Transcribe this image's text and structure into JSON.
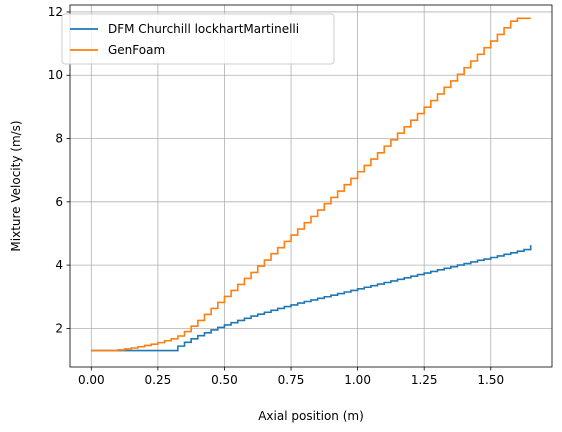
{
  "chart_data": {
    "type": "line",
    "style": "step",
    "title": "",
    "xlabel": "Axial position (m)",
    "ylabel": "Mixture Velocity (m/s)",
    "xlim": [
      -0.08,
      1.73
    ],
    "ylim": [
      0.78,
      12.22
    ],
    "xticks": [
      0.0,
      0.25,
      0.5,
      0.75,
      1.0,
      1.25,
      1.5
    ],
    "xtick_labels": [
      "0.00",
      "0.25",
      "0.50",
      "0.75",
      "1.00",
      "1.25",
      "1.50"
    ],
    "yticks": [
      2,
      4,
      6,
      8,
      10,
      12
    ],
    "ytick_labels": [
      "2",
      "4",
      "6",
      "8",
      "10",
      "12"
    ],
    "grid": true,
    "legend_position": "upper-left",
    "series": [
      {
        "name": "DFM Churchill lockhartMartinelli",
        "color": "#1f77b4",
        "x": [
          0.0,
          0.325,
          0.35,
          0.375,
          0.4,
          0.425,
          0.45,
          0.475,
          0.5,
          0.525,
          0.55,
          0.575,
          0.6,
          0.625,
          0.65,
          0.675,
          0.7,
          0.725,
          0.75,
          0.775,
          0.8,
          0.825,
          0.85,
          0.875,
          0.9,
          0.925,
          0.95,
          0.975,
          1.0,
          1.025,
          1.05,
          1.075,
          1.1,
          1.125,
          1.15,
          1.175,
          1.2,
          1.225,
          1.25,
          1.275,
          1.3,
          1.325,
          1.35,
          1.375,
          1.4,
          1.425,
          1.45,
          1.475,
          1.5,
          1.525,
          1.55,
          1.575,
          1.6,
          1.625,
          1.65
        ],
        "y": [
          1.3,
          1.44,
          1.56,
          1.67,
          1.77,
          1.86,
          1.95,
          2.03,
          2.11,
          2.18,
          2.25,
          2.32,
          2.39,
          2.45,
          2.51,
          2.57,
          2.63,
          2.69,
          2.74,
          2.8,
          2.85,
          2.9,
          2.95,
          3.0,
          3.05,
          3.1,
          3.15,
          3.2,
          3.25,
          3.3,
          3.35,
          3.4,
          3.45,
          3.5,
          3.55,
          3.6,
          3.65,
          3.7,
          3.75,
          3.8,
          3.85,
          3.9,
          3.95,
          4.0,
          4.05,
          4.1,
          4.15,
          4.19,
          4.24,
          4.29,
          4.34,
          4.39,
          4.44,
          4.49,
          4.63
        ]
      },
      {
        "name": "GenFoam",
        "color": "#ff7f0e",
        "x": [
          0.0,
          0.1,
          0.125,
          0.15,
          0.175,
          0.2,
          0.225,
          0.25,
          0.275,
          0.3,
          0.325,
          0.35,
          0.375,
          0.4,
          0.425,
          0.45,
          0.475,
          0.5,
          0.525,
          0.55,
          0.575,
          0.6,
          0.625,
          0.65,
          0.675,
          0.7,
          0.725,
          0.75,
          0.775,
          0.8,
          0.825,
          0.85,
          0.875,
          0.9,
          0.925,
          0.95,
          0.975,
          1.0,
          1.025,
          1.05,
          1.075,
          1.1,
          1.125,
          1.15,
          1.175,
          1.2,
          1.225,
          1.25,
          1.275,
          1.3,
          1.325,
          1.35,
          1.375,
          1.4,
          1.425,
          1.45,
          1.475,
          1.5,
          1.525,
          1.55,
          1.575,
          1.6,
          1.625,
          1.65
        ],
        "y": [
          1.3,
          1.32,
          1.35,
          1.38,
          1.42,
          1.46,
          1.5,
          1.55,
          1.61,
          1.67,
          1.76,
          1.9,
          2.07,
          2.25,
          2.44,
          2.63,
          2.82,
          3.01,
          3.2,
          3.39,
          3.58,
          3.77,
          3.97,
          4.16,
          4.36,
          4.55,
          4.75,
          4.95,
          5.14,
          5.34,
          5.54,
          5.74,
          5.94,
          6.14,
          6.34,
          6.54,
          6.74,
          6.95,
          7.15,
          7.35,
          7.55,
          7.76,
          7.96,
          8.17,
          8.37,
          8.58,
          8.79,
          8.99,
          9.2,
          9.41,
          9.62,
          9.82,
          10.03,
          10.24,
          10.45,
          10.66,
          10.87,
          11.08,
          11.29,
          11.5,
          11.71,
          11.8,
          11.8,
          11.8
        ]
      }
    ]
  }
}
